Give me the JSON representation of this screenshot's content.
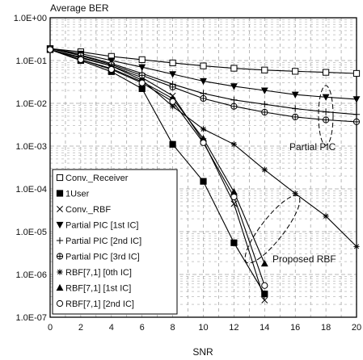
{
  "chart_data": {
    "type": "line",
    "title": "",
    "ylabel": "Average BER",
    "xlabel": "SNR",
    "x_ticks": [
      "0",
      "2",
      "4",
      "6",
      "8",
      "10",
      "12",
      "14",
      "16",
      "18",
      "20"
    ],
    "y_ticks": [
      "1.0E+00",
      "1.0E-01",
      "1.0E-02",
      "1.0E-03",
      "1.0E-04",
      "1.0E-05",
      "1.0E-06",
      "1.0E-07"
    ],
    "xlim": [
      0,
      20
    ],
    "ylim": [
      1e-07,
      1
    ],
    "yscale": "log",
    "grid": true,
    "legend_position": "bottom-left",
    "series": [
      {
        "name": "Conv._Receiver",
        "marker": "square-open",
        "x": [
          0,
          2,
          4,
          6,
          8,
          10,
          12,
          14,
          16,
          18,
          20
        ],
        "y": [
          0.19,
          0.16,
          0.125,
          0.105,
          0.088,
          0.075,
          0.066,
          0.06,
          0.056,
          0.053,
          0.05
        ]
      },
      {
        "name": "1User",
        "marker": "square-filled",
        "x": [
          0,
          2,
          4,
          6,
          8,
          10,
          12,
          14
        ],
        "y": [
          0.18,
          0.1,
          0.055,
          0.022,
          0.0011,
          0.00015,
          5.5e-06,
          3.5e-07
        ]
      },
      {
        "name": "Conv._RBF",
        "marker": "x",
        "x": [
          0,
          2,
          4,
          6,
          8,
          10,
          12,
          14
        ],
        "y": [
          0.18,
          0.115,
          0.075,
          0.04,
          0.015,
          0.0013,
          4.5e-05,
          2.5e-07
        ]
      },
      {
        "name": "Partial PIC [1st IC]",
        "marker": "triangle-down-filled",
        "x": [
          0,
          2,
          4,
          6,
          8,
          10,
          12,
          14,
          16,
          18,
          20
        ],
        "y": [
          0.19,
          0.145,
          0.1,
          0.07,
          0.048,
          0.033,
          0.025,
          0.02,
          0.016,
          0.014,
          0.0125
        ]
      },
      {
        "name": "Partial PIC [2nd IC]",
        "marker": "plus",
        "x": [
          0,
          2,
          4,
          6,
          8,
          10,
          12,
          14,
          16,
          18,
          20
        ],
        "y": [
          0.19,
          0.135,
          0.085,
          0.05,
          0.028,
          0.017,
          0.012,
          0.0095,
          0.0075,
          0.0063,
          0.0055
        ]
      },
      {
        "name": "Partial PIC [3rd IC]",
        "marker": "circle-open-cross",
        "x": [
          0,
          2,
          4,
          6,
          8,
          10,
          12,
          14,
          16,
          18,
          20
        ],
        "y": [
          0.19,
          0.13,
          0.08,
          0.045,
          0.024,
          0.013,
          0.0085,
          0.0062,
          0.0048,
          0.0041,
          0.0037
        ]
      },
      {
        "name": "RBF[7,1] [0th IC]",
        "marker": "star",
        "x": [
          0,
          2,
          4,
          6,
          8,
          10,
          12,
          14,
          16,
          18,
          20
        ],
        "y": [
          0.18,
          0.12,
          0.075,
          0.035,
          0.0085,
          0.0025,
          0.0011,
          0.00028,
          7.8e-05,
          2.3e-05,
          4.5e-06
        ]
      },
      {
        "name": "RBF[7,1] [1st IC]",
        "marker": "triangle-up-filled",
        "x": [
          0,
          2,
          4,
          6,
          8,
          10,
          12,
          14
        ],
        "y": [
          0.18,
          0.105,
          0.065,
          0.032,
          0.013,
          0.0015,
          8.5e-05,
          1.8e-06
        ]
      },
      {
        "name": "RBF[7,1] [2nd IC]",
        "marker": "circle-open",
        "x": [
          0,
          2,
          4,
          6,
          8,
          10,
          12,
          14
        ],
        "y": [
          0.18,
          0.105,
          0.062,
          0.03,
          0.011,
          0.0012,
          6.5e-05,
          5.5e-07
        ]
      }
    ],
    "annotations": [
      {
        "text": "Partial PIC"
      },
      {
        "text": "Proposed RBF"
      }
    ]
  }
}
